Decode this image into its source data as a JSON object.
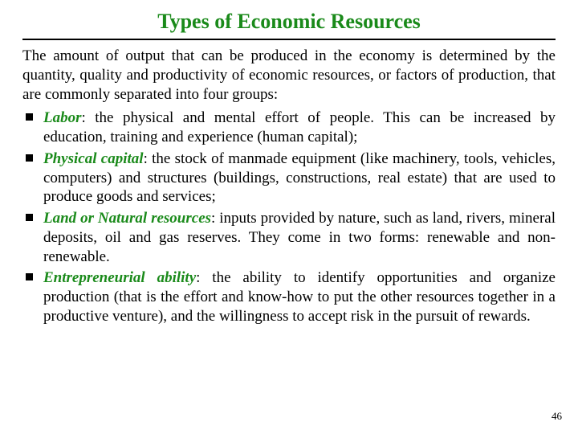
{
  "title": {
    "text": "Types of Economic Resources",
    "color": "#1a8a1a",
    "fontsize": 26
  },
  "intro": {
    "text": "The amount of output that can be produced in the economy is determined by the quantity, quality and productivity of economic resources, or factors of production, that are commonly separated into four groups:",
    "fontsize": 19,
    "line_height": 1.25
  },
  "bullets": [
    {
      "term": "Labor",
      "desc": ": the physical and mental effort of people. This can be increased by education, training and experience (human capital);"
    },
    {
      "term": "Physical capital",
      "desc": ": the stock of manmade equipment (like machinery, tools, vehicles, computers) and structures (buildings, constructions, real estate) that are used to produce goods and services;"
    },
    {
      "term": "Land or Natural resources",
      "desc": ": inputs provided by nature, such as land, rivers, mineral deposits, oil and gas reserves. They come in two forms: renewable and non-renewable."
    },
    {
      "term": "Entrepreneurial ability",
      "desc": ": the ability to identify opportunities and organize production (that is the effort and know-how to put the other resources together in a productive venture), and the willingness to accept risk in the pursuit of rewards."
    }
  ],
  "bullet_style": {
    "term_color": "#1a8a1a",
    "text_color": "#000000",
    "fontsize": 19,
    "line_height": 1.25,
    "marker_color": "#000000"
  },
  "page_number": "46",
  "background_color": "#ffffff"
}
